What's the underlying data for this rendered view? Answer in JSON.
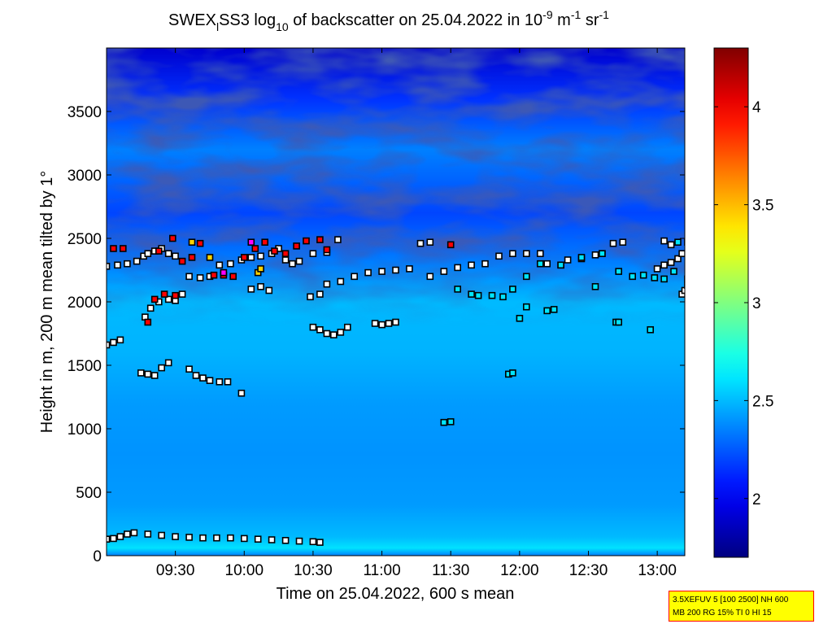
{
  "title": {
    "prefix": "SWEX",
    "sub1": "l",
    "middle": "SS3 log",
    "sub2": "10",
    "suffix": " of backscatter on 25.04.2022 in 10",
    "sup1": "-9",
    "unit_m": " m",
    "sup2": "-1",
    "unit_sr": " sr",
    "sup3": "-1"
  },
  "info_box": {
    "line1": "3.5XEFUV 5 [100 2500] NH 600",
    "line2": "MB 200 RG 15% TI 0 HI 15"
  },
  "chart_data": {
    "type": "heatmap",
    "title": "SWEX_lSS3 log_10 of backscatter on 25.04.2022 in 10^-9 m^-1 sr^-1",
    "xlabel": "Time on 25.04.2022, 600 s mean",
    "ylabel": "Height in m, 200 m mean tilted by 1°",
    "xlim_hours": [
      9.0,
      13.2
    ],
    "ylim": [
      0,
      4000
    ],
    "xticks": [
      {
        "value": 9.5,
        "label": "09:30"
      },
      {
        "value": 10.0,
        "label": "10:00"
      },
      {
        "value": 10.5,
        "label": "10:30"
      },
      {
        "value": 11.0,
        "label": "11:00"
      },
      {
        "value": 11.5,
        "label": "11:30"
      },
      {
        "value": 12.0,
        "label": "12:00"
      },
      {
        "value": 12.5,
        "label": "12:30"
      },
      {
        "value": 13.0,
        "label": "13:00"
      }
    ],
    "yticks": [
      {
        "value": 0,
        "label": "0"
      },
      {
        "value": 500,
        "label": "500"
      },
      {
        "value": 1000,
        "label": "1000"
      },
      {
        "value": 1500,
        "label": "1500"
      },
      {
        "value": 2000,
        "label": "2000"
      },
      {
        "value": 2500,
        "label": "2500"
      },
      {
        "value": 3000,
        "label": "3000"
      },
      {
        "value": 3500,
        "label": "3500"
      }
    ],
    "colorbar": {
      "colormap": "jet",
      "clim": [
        1.7,
        4.3
      ],
      "ticks": [
        {
          "value": 2,
          "label": "2"
        },
        {
          "value": 2.5,
          "label": "2.5"
        },
        {
          "value": 3,
          "label": "3"
        },
        {
          "value": 3.5,
          "label": "3.5"
        },
        {
          "value": 4,
          "label": "4"
        }
      ]
    },
    "field_profile": [
      {
        "height": 0,
        "value": 2.35
      },
      {
        "height": 60,
        "value": 2.6
      },
      {
        "height": 150,
        "value": 2.5
      },
      {
        "height": 400,
        "value": 2.42
      },
      {
        "height": 800,
        "value": 2.4
      },
      {
        "height": 1200,
        "value": 2.42
      },
      {
        "height": 1600,
        "value": 2.48
      },
      {
        "height": 2000,
        "value": 2.5
      },
      {
        "height": 2300,
        "value": 2.35
      },
      {
        "height": 2700,
        "value": 2.2
      },
      {
        "height": 3200,
        "value": 2.35
      },
      {
        "height": 3600,
        "value": 2.15
      },
      {
        "height": 4000,
        "value": 1.9
      }
    ],
    "layer_series": [
      {
        "color": "#ffffff",
        "points": [
          [
            9.0,
            1660
          ],
          [
            9.05,
            1680
          ],
          [
            9.1,
            1700
          ],
          [
            9.0,
            2280
          ],
          [
            9.08,
            2290
          ],
          [
            9.15,
            2300
          ],
          [
            9.22,
            2320
          ],
          [
            9.27,
            2360
          ],
          [
            9.3,
            2380
          ],
          [
            9.35,
            2400
          ],
          [
            9.4,
            2420
          ],
          [
            9.45,
            2380
          ],
          [
            9.5,
            2360
          ]
        ]
      },
      {
        "color": "#ffffff",
        "points": [
          [
            9.28,
            1880
          ],
          [
            9.32,
            1950
          ],
          [
            9.38,
            2000
          ],
          [
            9.45,
            2020
          ],
          [
            9.5,
            2010
          ],
          [
            9.55,
            2060
          ],
          [
            9.6,
            2200
          ],
          [
            9.68,
            2190
          ],
          [
            9.75,
            2200
          ],
          [
            9.82,
            2290
          ],
          [
            9.9,
            2300
          ],
          [
            9.98,
            2330
          ],
          [
            10.05,
            2350
          ],
          [
            10.12,
            2360
          ],
          [
            10.2,
            2380
          ],
          [
            10.25,
            2420
          ],
          [
            10.3,
            2330
          ],
          [
            10.35,
            2300
          ],
          [
            10.4,
            2320
          ],
          [
            10.5,
            2380
          ],
          [
            10.6,
            2390
          ],
          [
            10.68,
            2490
          ]
        ]
      },
      {
        "color": "#ffffff",
        "points": [
          [
            10.05,
            2100
          ],
          [
            10.12,
            2120
          ],
          [
            10.18,
            2090
          ],
          [
            10.48,
            2040
          ],
          [
            10.55,
            2060
          ],
          [
            10.6,
            2140
          ],
          [
            10.7,
            2160
          ],
          [
            10.8,
            2200
          ],
          [
            10.9,
            2230
          ],
          [
            11.0,
            2240
          ],
          [
            11.1,
            2250
          ],
          [
            11.2,
            2260
          ],
          [
            11.28,
            2460
          ],
          [
            11.35,
            2470
          ]
        ]
      },
      {
        "color": "#ffffff",
        "points": [
          [
            11.35,
            2200
          ],
          [
            11.45,
            2240
          ],
          [
            11.55,
            2270
          ],
          [
            11.65,
            2290
          ],
          [
            11.75,
            2300
          ],
          [
            11.85,
            2360
          ],
          [
            11.95,
            2380
          ],
          [
            12.05,
            2380
          ],
          [
            12.15,
            2380
          ],
          [
            12.2,
            2300
          ],
          [
            12.3,
            2290
          ],
          [
            12.35,
            2330
          ],
          [
            12.45,
            2340
          ],
          [
            12.55,
            2370
          ],
          [
            12.6,
            2380
          ],
          [
            12.68,
            2460
          ],
          [
            12.75,
            2470
          ]
        ]
      },
      {
        "color": "#00e5ff",
        "points": [
          [
            11.55,
            2100
          ],
          [
            11.65,
            2060
          ],
          [
            11.7,
            2050
          ],
          [
            11.8,
            2050
          ],
          [
            11.88,
            2040
          ],
          [
            11.95,
            2100
          ],
          [
            12.05,
            2200
          ],
          [
            12.15,
            2300
          ],
          [
            12.3,
            2290
          ],
          [
            12.45,
            2350
          ],
          [
            12.6,
            2380
          ],
          [
            12.72,
            2240
          ],
          [
            12.82,
            2200
          ],
          [
            12.9,
            2210
          ],
          [
            12.98,
            2190
          ],
          [
            13.05,
            2180
          ],
          [
            13.12,
            2240
          ],
          [
            13.15,
            2470
          ]
        ]
      },
      {
        "color": "#ffffff",
        "points": [
          [
            13.0,
            2260
          ],
          [
            13.05,
            2290
          ],
          [
            13.1,
            2310
          ],
          [
            13.15,
            2340
          ],
          [
            13.18,
            2380
          ],
          [
            13.18,
            2060
          ],
          [
            13.2,
            2090
          ],
          [
            13.22,
            2130
          ],
          [
            13.22,
            2180
          ],
          [
            13.1,
            2450
          ],
          [
            13.05,
            2480
          ]
        ]
      },
      {
        "color": "#ffffff",
        "points": [
          [
            9.25,
            1440
          ],
          [
            9.3,
            1430
          ],
          [
            9.35,
            1420
          ],
          [
            9.4,
            1480
          ],
          [
            9.45,
            1520
          ],
          [
            9.6,
            1470
          ],
          [
            9.65,
            1420
          ],
          [
            9.7,
            1400
          ],
          [
            9.75,
            1380
          ],
          [
            9.82,
            1370
          ],
          [
            9.88,
            1370
          ],
          [
            9.98,
            1280
          ]
        ]
      },
      {
        "color": "#ffffff",
        "points": [
          [
            10.5,
            1800
          ],
          [
            10.55,
            1780
          ],
          [
            10.6,
            1750
          ],
          [
            10.65,
            1740
          ],
          [
            10.7,
            1760
          ],
          [
            10.75,
            1800
          ],
          [
            10.95,
            1830
          ],
          [
            11.0,
            1820
          ],
          [
            11.05,
            1830
          ],
          [
            11.1,
            1840
          ]
        ]
      },
      {
        "color": "#00e5ff",
        "points": [
          [
            11.45,
            1050
          ],
          [
            11.5,
            1055
          ],
          [
            11.92,
            1430
          ],
          [
            11.95,
            1440
          ],
          [
            12.0,
            1870
          ],
          [
            12.05,
            1960
          ],
          [
            12.2,
            1930
          ],
          [
            12.25,
            1940
          ],
          [
            12.55,
            2120
          ],
          [
            12.7,
            1840
          ],
          [
            12.72,
            1840
          ],
          [
            12.95,
            1780
          ]
        ]
      },
      {
        "color": "#ffffff",
        "points": [
          [
            9.0,
            130
          ],
          [
            9.05,
            135
          ],
          [
            9.1,
            150
          ],
          [
            9.15,
            170
          ],
          [
            9.2,
            180
          ],
          [
            9.3,
            170
          ],
          [
            9.4,
            160
          ],
          [
            9.5,
            150
          ],
          [
            9.6,
            145
          ],
          [
            9.7,
            140
          ],
          [
            9.8,
            140
          ],
          [
            9.9,
            140
          ],
          [
            10.0,
            135
          ],
          [
            10.1,
            130
          ],
          [
            10.2,
            125
          ],
          [
            10.3,
            120
          ],
          [
            10.4,
            115
          ],
          [
            10.5,
            110
          ],
          [
            10.55,
            105
          ]
        ]
      },
      {
        "color": "#ff0000",
        "points": [
          [
            9.3,
            1840
          ],
          [
            9.35,
            2020
          ],
          [
            9.42,
            2060
          ],
          [
            9.5,
            2050
          ],
          [
            9.38,
            2400
          ],
          [
            9.48,
            2500
          ],
          [
            9.55,
            2320
          ],
          [
            9.62,
            2350
          ],
          [
            9.68,
            2460
          ],
          [
            9.78,
            2210
          ],
          [
            9.85,
            2210
          ],
          [
            9.92,
            2200
          ],
          [
            10.0,
            2350
          ],
          [
            10.08,
            2420
          ],
          [
            10.15,
            2470
          ],
          [
            10.22,
            2400
          ],
          [
            10.3,
            2380
          ],
          [
            10.38,
            2440
          ],
          [
            10.45,
            2480
          ],
          [
            10.55,
            2490
          ],
          [
            10.6,
            2410
          ],
          [
            11.5,
            2450
          ],
          [
            13.22,
            2470
          ],
          [
            9.05,
            2420
          ],
          [
            9.12,
            2420
          ]
        ]
      },
      {
        "color": "#ffd400",
        "points": [
          [
            9.62,
            2470
          ],
          [
            9.75,
            2350
          ],
          [
            10.1,
            2230
          ],
          [
            10.12,
            2260
          ]
        ]
      },
      {
        "color": "#ff00ff",
        "points": [
          [
            10.05,
            2470
          ],
          [
            9.85,
            2230
          ]
        ]
      }
    ]
  }
}
